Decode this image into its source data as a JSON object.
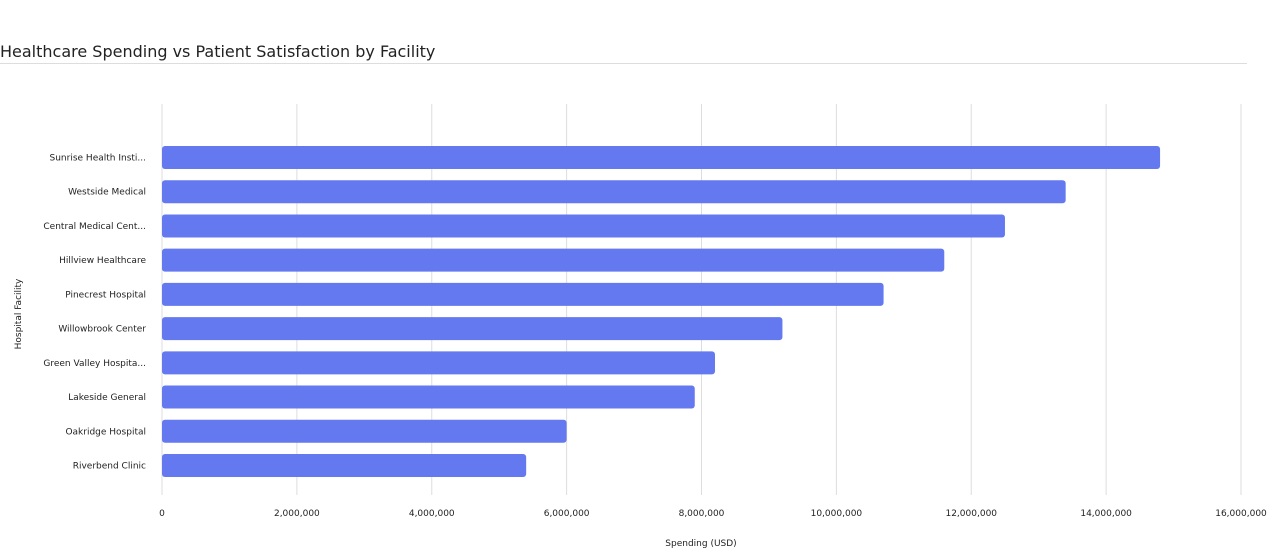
{
  "chart_data": {
    "type": "bar",
    "orientation": "horizontal",
    "title": "Healthcare Spending vs Patient Satisfaction by Facility",
    "xlabel": "Spending (USD)",
    "ylabel": "Hospital Facility",
    "categories": [
      "Sunrise Health Insti...",
      "Westside Medical",
      "Central Medical Cent...",
      "Hillview Healthcare",
      "Pinecrest Hospital",
      "Willowbrook Center",
      "Green Valley Hospita...",
      "Lakeside General",
      "Oakridge Hospital",
      "Riverbend Clinic"
    ],
    "values": [
      14800000,
      13400000,
      12500000,
      11600000,
      10700000,
      9200000,
      8200000,
      7900000,
      6000000,
      5400000
    ],
    "xlim": [
      0,
      16000000
    ],
    "xticks": [
      "0",
      "2,000,000",
      "4,000,000",
      "6,000,000",
      "8,000,000",
      "10,000,000",
      "12,000,000",
      "14,000,000",
      "16,000,000"
    ],
    "grid": true,
    "bar_color": "#6479f0",
    "grid_color": "#dddddd"
  }
}
